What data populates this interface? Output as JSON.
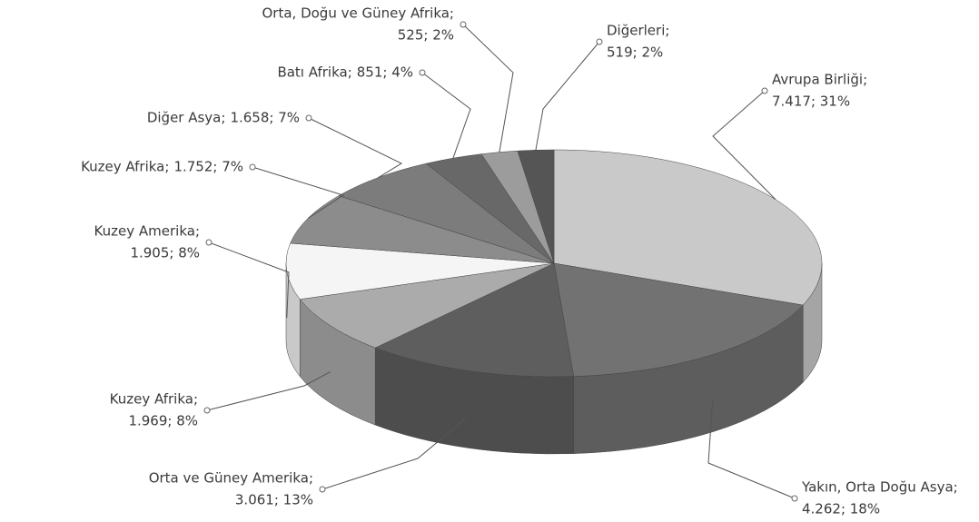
{
  "chart_data": {
    "type": "pie",
    "categories": [
      "Avrupa Birliği;",
      "Yakın, Orta Doğu Asya;",
      "Orta ve Güney Amerika;",
      "Kuzey Afrika;",
      "Kuzey Amerika;",
      "Kuzey Afrika;",
      "Diğer Asya;",
      "Batı Afrika;",
      "Orta, Doğu ve Güney Afrika;",
      "Diğerleri;"
    ],
    "values": [
      7417,
      4262,
      3061,
      1969,
      1905,
      1752,
      1658,
      851,
      525,
      519
    ],
    "value_labels": [
      "7.417; 31%",
      "4.262; 18%",
      "3.061; 13%",
      "1.969; 8%",
      "1.905; 8%",
      "1.752; 7%",
      "1.658; 7%",
      "851; 4%",
      "525; 2%",
      "519; 2%"
    ],
    "colors": [
      "#c9c9c9",
      "#727272",
      "#5e5e5e",
      "#ababab",
      "#f5f5f5",
      "#8c8c8c",
      "#7c7c7c",
      "#686868",
      "#9c9c9c",
      "#555555"
    ]
  }
}
